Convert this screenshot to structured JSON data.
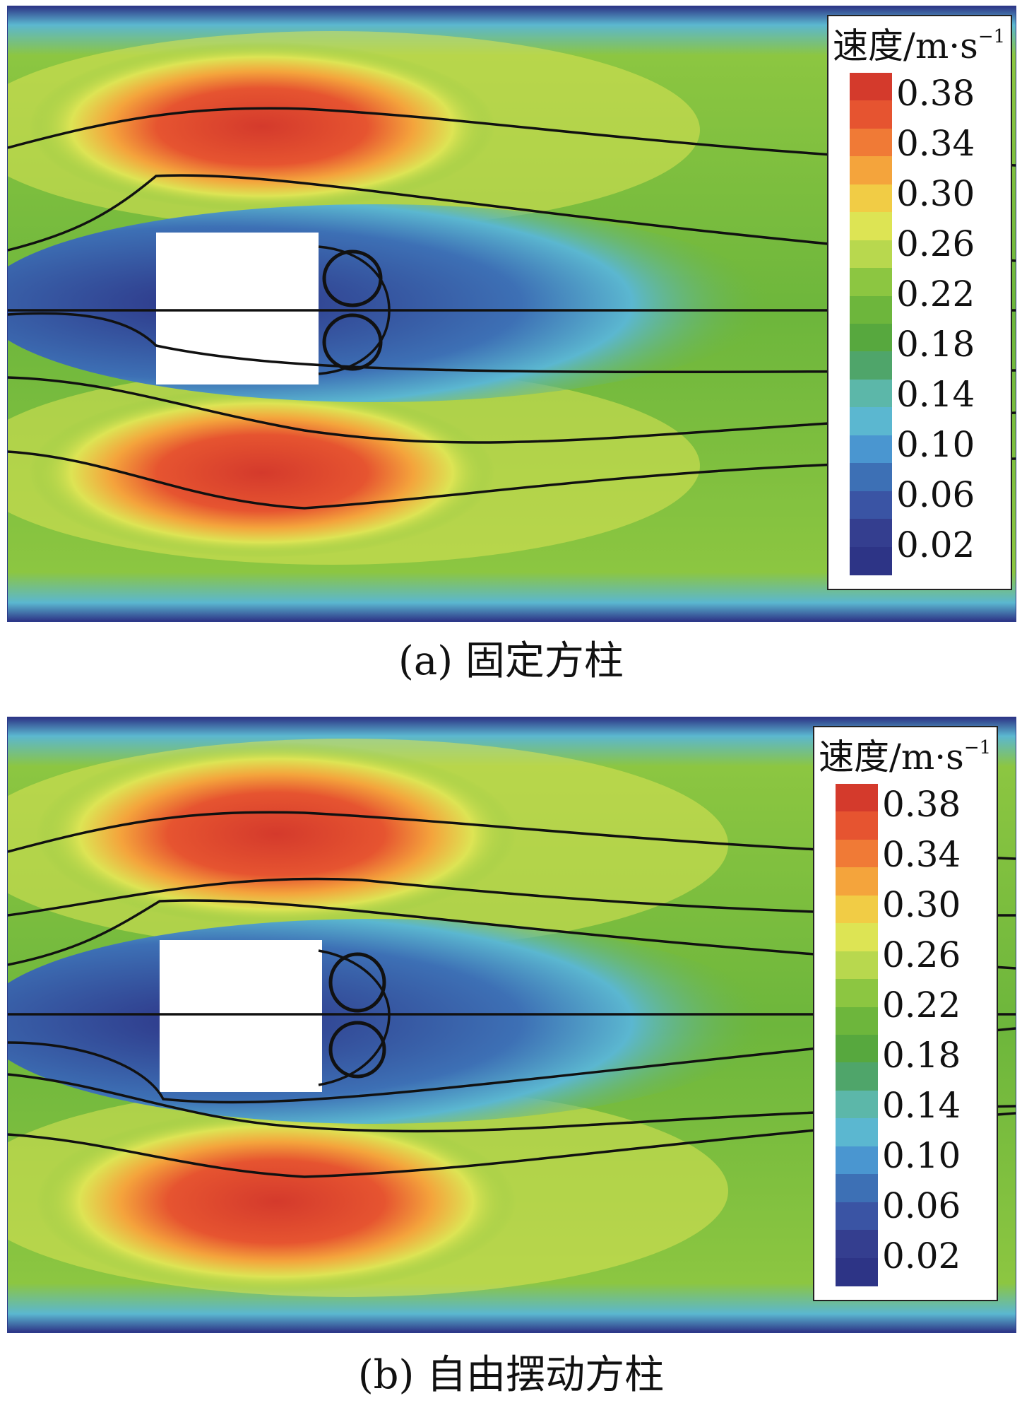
{
  "figure": {
    "panels": [
      {
        "id": "a",
        "caption": "(a) 固定方柱",
        "legend_title": "速度/m·s",
        "legend_sup": "−1"
      },
      {
        "id": "b",
        "caption": "(b) 自由摆动方柱",
        "legend_title": "速度/m·s",
        "legend_sup": "−1"
      }
    ],
    "legend": {
      "ticks": [
        "0.38",
        "0.34",
        "0.30",
        "0.26",
        "0.22",
        "0.18",
        "0.14",
        "0.10",
        "0.06",
        "0.02"
      ],
      "colors": [
        "#d43a2c",
        "#e65430",
        "#f07a36",
        "#f4a43c",
        "#f1cc45",
        "#dde454",
        "#b8d84e",
        "#8cc641",
        "#6db63c",
        "#57a83e",
        "#4fa56a",
        "#5cb7a9",
        "#5bb7d0",
        "#4a96d0",
        "#3d70b5",
        "#3a54a4",
        "#343e8f",
        "#2d3486"
      ]
    },
    "colors": {
      "high": "#d43a2c",
      "mid": "#f1cc45",
      "background": "#6db63c",
      "low": "#2d3486",
      "streamline": "#111111"
    }
  }
}
